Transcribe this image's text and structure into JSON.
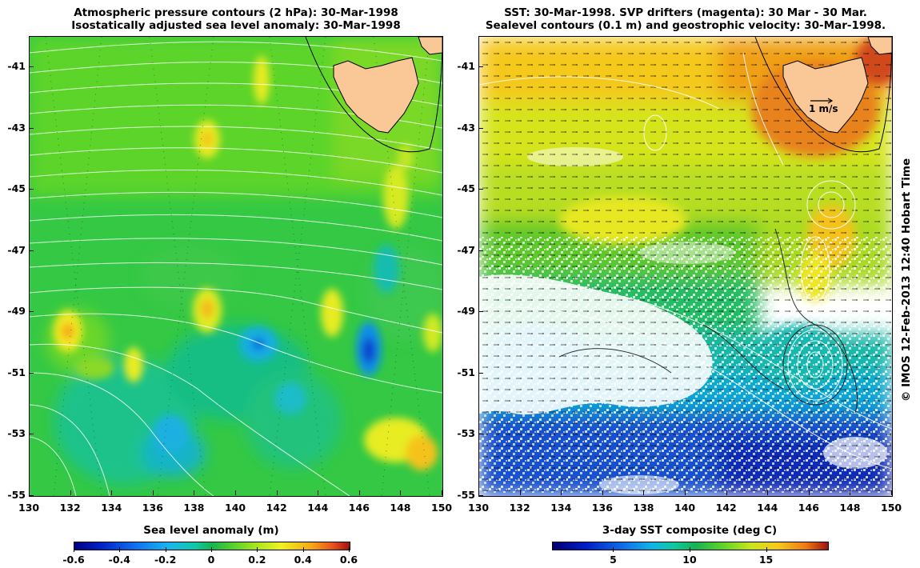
{
  "left_panel": {
    "title_line1": "Atmospheric pressure contours (2 hPa): 30-Mar-1998",
    "title_line2": "Isostatically adjusted sea level anomaly: 30-Mar-1998",
    "colorbar_title": "Sea level anomaly (m)",
    "colorbar_ticks": [
      "-0.6",
      "-0.4",
      "-0.2",
      "0",
      "0.2",
      "0.4",
      "0.6"
    ],
    "colorbar_range": [
      -0.6,
      0.6
    ]
  },
  "right_panel": {
    "title_line1": "SST: 30-Mar-1998. SVP drifters (magenta): 30 Mar - 30 Mar.",
    "title_line2": "Sealevel contours (0.1 m) and geostrophic velocity: 30-Mar-1998.",
    "colorbar_title": "3-day SST composite (deg C)",
    "colorbar_ticks": [
      "5",
      "10",
      "15"
    ],
    "colorbar_range": [
      1,
      19
    ],
    "velocity_scale_label": "1 m/s"
  },
  "axes": {
    "lon_ticks": [
      130,
      132,
      134,
      136,
      138,
      140,
      142,
      144,
      146,
      148,
      150
    ],
    "lat_ticks": [
      -41,
      -43,
      -45,
      -47,
      -49,
      -51,
      -53,
      -55
    ],
    "lon_range": [
      130,
      150
    ],
    "lat_range": [
      -55,
      -40
    ]
  },
  "credit": "© IMOS 12-Feb-2013 12:40 Hobart Time",
  "colors": {
    "land": "#f9c896",
    "contour_white": "#ffffff",
    "sla_green": "#19be3c",
    "sst_orange": "#f0a019"
  }
}
